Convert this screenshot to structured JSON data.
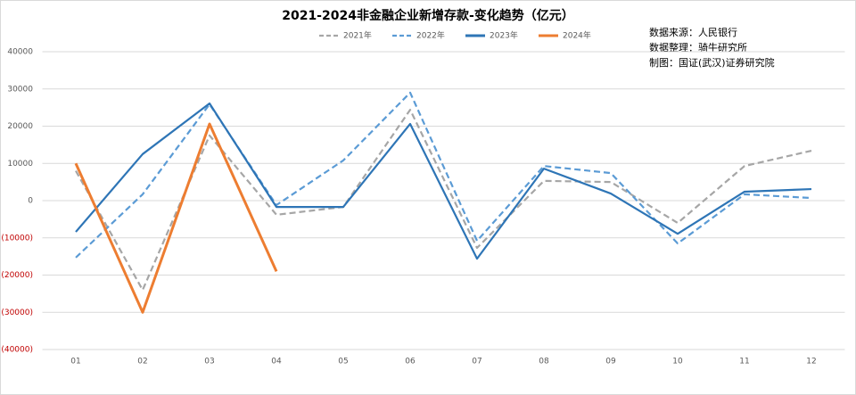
{
  "chart_data": {
    "type": "line",
    "title": "2021-2024非金融企业新增存款-变化趋势（亿元）",
    "annotations": [
      "数据来源：人民银行",
      "数据整理：骑牛研究所",
      "制图：国证(武汉)证券研究院"
    ],
    "categories": [
      "01",
      "02",
      "03",
      "04",
      "05",
      "06",
      "07",
      "08",
      "09",
      "10",
      "11",
      "12"
    ],
    "series": [
      {
        "name": "2021年",
        "color": "#a6a6a6",
        "style": "dashed",
        "values": [
          8000,
          -24000,
          17500,
          -3800,
          -1700,
          24400,
          -12700,
          5300,
          5000,
          -6000,
          9300,
          13400
        ]
      },
      {
        "name": "2022年",
        "color": "#5b9bd5",
        "style": "dashed",
        "values": [
          -15300,
          1700,
          25900,
          -1200,
          10800,
          29000,
          -10800,
          9300,
          7400,
          -11500,
          1700,
          700
        ]
      },
      {
        "name": "2023年",
        "color": "#2e75b6",
        "style": "solid",
        "values": [
          -8400,
          12500,
          26100,
          -1700,
          -1700,
          20600,
          -15600,
          8600,
          1900,
          -8900,
          2400,
          3100
        ]
      },
      {
        "name": "2024年",
        "color": "#ed7d31",
        "style": "solid",
        "values": [
          10000,
          -30000,
          20600,
          -19000,
          null,
          null,
          null,
          null,
          null,
          null,
          null,
          null
        ]
      }
    ],
    "ylim": [
      -40000,
      40000
    ],
    "yticks": [
      {
        "value": -40000,
        "label": "(40000)"
      },
      {
        "value": -30000,
        "label": "(30000)"
      },
      {
        "value": -20000,
        "label": "(20000)"
      },
      {
        "value": -10000,
        "label": "(10000)"
      },
      0,
      10000,
      20000,
      30000,
      40000
    ],
    "negative_tick_color": "#c00000",
    "grid": true,
    "legend": "top"
  }
}
